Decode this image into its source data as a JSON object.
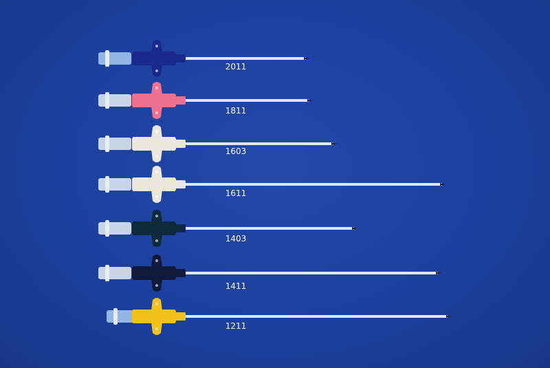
{
  "background_color": "#1c3f9c",
  "catheters": [
    {
      "label": "2011",
      "hub_color": "#1a2a8c"
    },
    {
      "label": "1811",
      "hub_color": "#f0708f"
    },
    {
      "label": "1603",
      "hub_color": "#ece7de"
    },
    {
      "label": "1611",
      "hub_color": "#ece7de"
    },
    {
      "label": "1403",
      "hub_color": "#0f2a3c"
    },
    {
      "label": "1411",
      "hub_color": "#101a3c"
    },
    {
      "label": "1211",
      "hub_color": "#f2c21a"
    }
  ]
}
